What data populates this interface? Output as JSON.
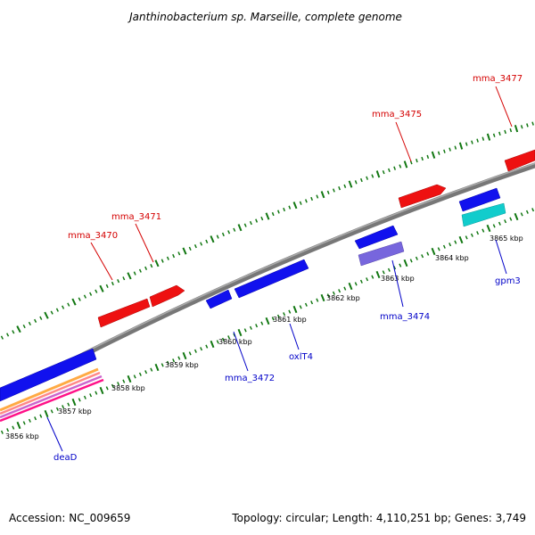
{
  "title": "Janthinobacterium sp. Marseille, complete genome",
  "footer": {
    "accession": "Accession: NC_009659",
    "topology": "Topology: circular; Length: 4,110,251 bp; Genes: 3,749"
  },
  "colors": {
    "forward_gene": "#ee1111",
    "reverse_gene": "#1111ee",
    "backbone": "#888888",
    "ticks": "#117711",
    "label_forward": "#d40000",
    "label_reverse": "#0000c8",
    "cyan_feature": "#11cccc",
    "purple_feature": "#7766dd"
  },
  "scale_labels": [
    "3856 kbp",
    "3857 kbp",
    "3858 kbp",
    "3859 kbp",
    "3860 kbp",
    "3861 kbp",
    "3862 kbp",
    "3863 kbp",
    "3864 kbp",
    "3865 kbp"
  ],
  "genes_forward": [
    "mma_3470",
    "mma_3471",
    "mma_3475",
    "mma_3477"
  ],
  "genes_reverse": [
    "deaD",
    "mma_3472",
    "oxlT4",
    "mma_3474",
    "gpm3"
  ]
}
